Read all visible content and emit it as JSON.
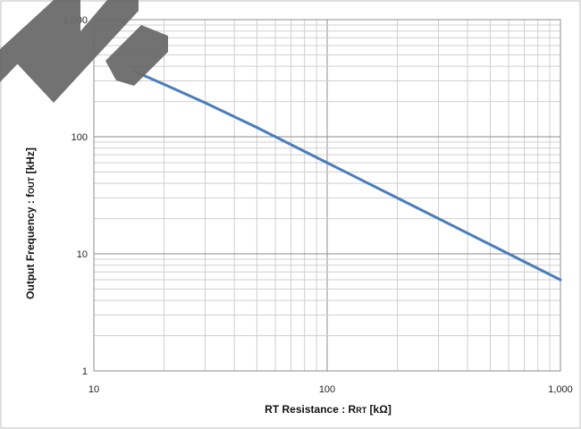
{
  "chart_data": {
    "type": "line",
    "title": "",
    "xscale": "log",
    "yscale": "log",
    "xlim": [
      10,
      1000
    ],
    "ylim": [
      1,
      1000
    ],
    "grid": true,
    "legend": "none",
    "xlabel": {
      "main": "RT Resistance : R",
      "sub": "RT",
      "suffix": " [kΩ]"
    },
    "ylabel": {
      "main": "Output Frequency : f",
      "sub": "OUT",
      "suffix": "  [kHz]"
    },
    "x_ticks": [
      {
        "value": 10,
        "label": "10"
      },
      {
        "value": 100,
        "label": "100"
      },
      {
        "value": 1000,
        "label": "1,000"
      }
    ],
    "y_ticks": [
      {
        "value": 1,
        "label": "1"
      },
      {
        "value": 10,
        "label": "10"
      },
      {
        "value": 100,
        "label": "100"
      },
      {
        "value": 1000,
        "label": "1,000"
      }
    ],
    "series": [
      {
        "color": "#4A7EBB",
        "x": [
          15,
          20,
          30,
          50,
          100,
          200,
          500,
          1000
        ],
        "y": [
          360,
          280,
          195,
          120,
          60,
          30,
          12,
          6
        ]
      }
    ],
    "watermark_color": "#6b6b6b"
  }
}
